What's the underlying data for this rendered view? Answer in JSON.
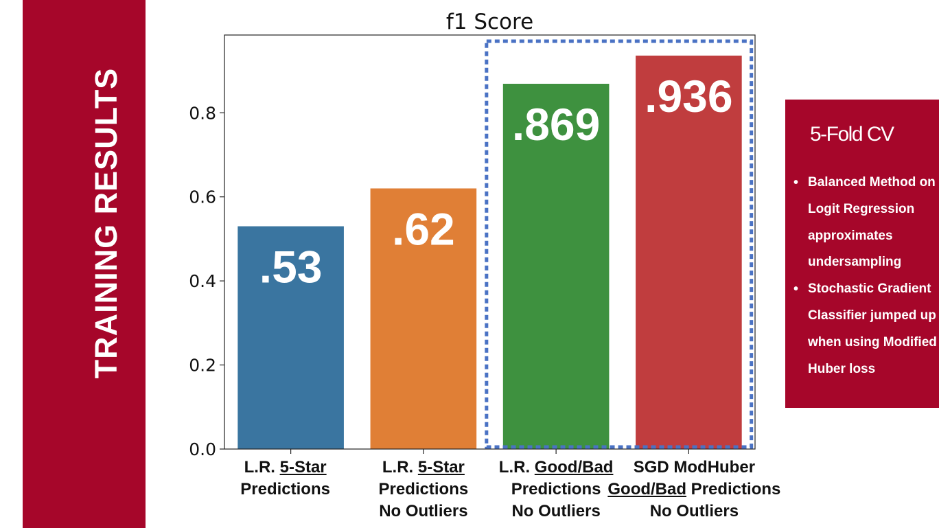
{
  "sidebar": {
    "title": "TRAINING RESULTS"
  },
  "info_box": {
    "heading": "5-Fold CV",
    "bullets": [
      "Balanced Method on Logit Regression approximates undersampling",
      "Stochastic Gradient Classifier jumped up when using Modified Huber loss"
    ]
  },
  "chart_data": {
    "type": "bar",
    "title": "f1 Score",
    "xlabel": "",
    "ylabel": "",
    "ylim": [
      0,
      0.985
    ],
    "yticks": [
      "0.0",
      "0.2",
      "0.4",
      "0.6",
      "0.8"
    ],
    "categories": [
      "L.R. 5-Star Predictions",
      "L.R. 5-Star Predictions No Outliers",
      "L.R. Good/Bad Predictions No Outliers",
      "SGD ModHuber Good/Bad Predictions No Outliers"
    ],
    "values": [
      0.53,
      0.62,
      0.869,
      0.936
    ],
    "data_labels": [
      ".53",
      ".62",
      ".869",
      ".936"
    ],
    "colors": [
      "#3a75a0",
      "#e07f36",
      "#3e913f",
      "#c03d3e"
    ],
    "highlight": {
      "style": "dashed-box",
      "color": "#4a72c4",
      "categories": [
        2,
        3
      ]
    }
  },
  "category_label_parts": [
    {
      "line1": [
        {
          "t": "L.R. ",
          "u": false
        },
        {
          "t": "5-Star",
          "u": true
        }
      ],
      "line2": [
        {
          "t": "Predictions",
          "u": false
        }
      ],
      "line3": []
    },
    {
      "line1": [
        {
          "t": "L.R. ",
          "u": false
        },
        {
          "t": "5-Star",
          "u": true
        }
      ],
      "line2": [
        {
          "t": "Predictions",
          "u": false
        }
      ],
      "line3": [
        {
          "t": "No Outliers",
          "u": false
        }
      ]
    },
    {
      "line1": [
        {
          "t": "L.R. ",
          "u": false
        },
        {
          "t": "Good/Bad",
          "u": true
        }
      ],
      "line2": [
        {
          "t": "Predictions",
          "u": false
        }
      ],
      "line3": [
        {
          "t": "No Outliers",
          "u": false
        }
      ]
    },
    {
      "line1": [
        {
          "t": "SGD ModHuber",
          "u": false
        }
      ],
      "line2": [
        {
          "t": "Good/Bad",
          "u": true
        },
        {
          "t": " Predictions",
          "u": false
        }
      ],
      "line3": [
        {
          "t": "No Outliers",
          "u": false
        }
      ]
    }
  ]
}
